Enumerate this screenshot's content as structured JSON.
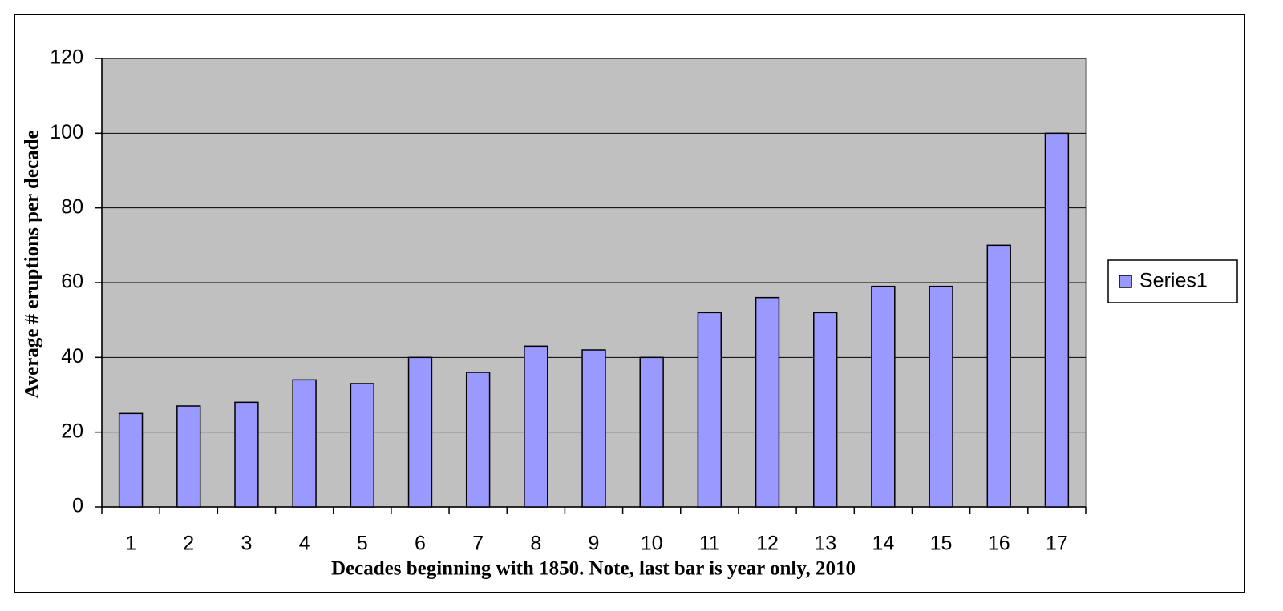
{
  "chart_data": {
    "type": "bar",
    "x_label": "Decades beginning with 1850. Note, last bar is year only, 2010",
    "y_label": "Average # eruptions per decade",
    "categories": [
      "1",
      "2",
      "3",
      "4",
      "5",
      "6",
      "7",
      "8",
      "9",
      "10",
      "11",
      "12",
      "13",
      "14",
      "15",
      "16",
      "17"
    ],
    "series": [
      {
        "name": "Series1",
        "color": "#9999ff",
        "values": [
          25,
          27,
          28,
          34,
          33,
          40,
          36,
          43,
          42,
          40,
          52,
          56,
          52,
          59,
          59,
          70,
          100
        ]
      }
    ],
    "ylim": [
      0,
      120
    ],
    "yticks": [
      0,
      20,
      40,
      60,
      80,
      100,
      120
    ],
    "grid": true,
    "legend": "right"
  }
}
